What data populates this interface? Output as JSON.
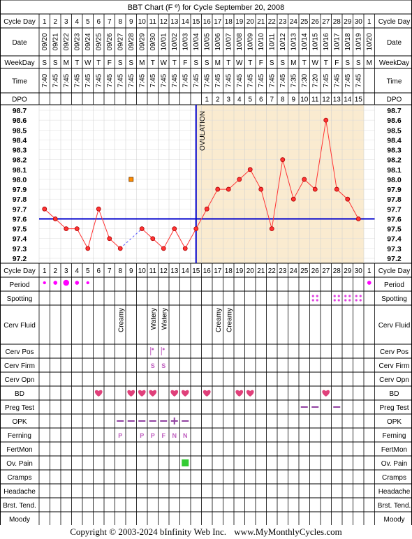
{
  "title": "BBT Chart (F º) for Cycle September 20, 2008",
  "labels": {
    "cycle_day": "Cycle Day",
    "date": "Date",
    "weekday": "WeekDay",
    "time": "Time",
    "dpo": "DPO",
    "ovulation": "OVULATION"
  },
  "cycle_days": [
    1,
    2,
    3,
    4,
    5,
    6,
    7,
    8,
    9,
    10,
    11,
    12,
    13,
    14,
    15,
    16,
    17,
    18,
    19,
    20,
    21,
    22,
    23,
    24,
    25,
    26,
    27,
    28,
    29,
    30,
    1
  ],
  "dates": [
    "09/20",
    "09/21",
    "09/22",
    "09/23",
    "09/24",
    "09/25",
    "09/26",
    "09/27",
    "09/28",
    "09/29",
    "09/30",
    "10/01",
    "10/02",
    "10/03",
    "10/04",
    "10/05",
    "10/06",
    "10/07",
    "10/08",
    "10/09",
    "10/10",
    "10/11",
    "10/12",
    "10/13",
    "10/14",
    "10/15",
    "10/16",
    "10/17",
    "10/18",
    "10/19",
    "10/20"
  ],
  "weekdays": [
    "S",
    "S",
    "M",
    "T",
    "W",
    "T",
    "F",
    "S",
    "S",
    "M",
    "T",
    "W",
    "T",
    "F",
    "S",
    "S",
    "M",
    "T",
    "W",
    "T",
    "F",
    "S",
    "S",
    "M",
    "T",
    "W",
    "T",
    "F",
    "S",
    "S",
    "M"
  ],
  "times": [
    "7:40",
    "7:45",
    "7:45",
    "7:45",
    "7:45",
    "7:45",
    "7:45",
    "7:45",
    "7:45",
    "7:45",
    "7:45",
    "7:45",
    "7:45",
    "7:45",
    "7:45",
    "7:45",
    "7:45",
    "7:45",
    "7:45",
    "7:45",
    "7:45",
    "7:45",
    "7:45",
    "7:35",
    "7:30",
    "7:20",
    "7:45",
    "7:45",
    "7:45",
    "7:45",
    ""
  ],
  "dpo": [
    "",
    "",
    "",
    "",
    "",
    "",
    "",
    "",
    "",
    "",
    "",
    "",
    "",
    "",
    "",
    "1",
    "2",
    "3",
    "4",
    "5",
    "6",
    "7",
    "8",
    "9",
    "10",
    "11",
    "12",
    "13",
    "14",
    "15",
    ""
  ],
  "chart_data": {
    "type": "line",
    "title": "BBT Chart (F º) for Cycle September 20, 2008",
    "y_ticks": [
      "98.7",
      "98.6",
      "98.5",
      "98.4",
      "98.3",
      "98.2",
      "98.1",
      "98.0",
      "97.9",
      "97.8",
      "97.7",
      "97.6",
      "97.5",
      "97.4",
      "97.3",
      "97.2"
    ],
    "ylim": [
      97.2,
      98.7
    ],
    "x": [
      1,
      2,
      3,
      4,
      5,
      6,
      7,
      8,
      9,
      10,
      11,
      12,
      13,
      14,
      15,
      16,
      17,
      18,
      19,
      20,
      21,
      22,
      23,
      24,
      25,
      26,
      27,
      28,
      29,
      30
    ],
    "temps": [
      97.7,
      97.6,
      97.5,
      97.5,
      97.3,
      97.7,
      97.4,
      97.3,
      null,
      97.5,
      97.4,
      97.3,
      97.5,
      97.3,
      97.5,
      97.7,
      97.9,
      97.9,
      98.0,
      98.1,
      97.9,
      97.5,
      98.2,
      97.8,
      98.0,
      97.9,
      98.6,
      97.9,
      97.8,
      97.6
    ],
    "discarded": [
      {
        "day": 9,
        "temp": 98.0
      }
    ],
    "coverline": 97.6,
    "ovulation_day": 15,
    "colors": {
      "line": "#ff3333",
      "coverline": "#0000cc",
      "luteal_fill": "#faebd0",
      "discard": "#ff8c00"
    }
  },
  "rows": [
    {
      "label": "Period",
      "items": [
        {
          "day": 1,
          "kind": "dot",
          "size": 3
        },
        {
          "day": 2,
          "kind": "dot",
          "size": 4
        },
        {
          "day": 3,
          "kind": "dot",
          "size": 6
        },
        {
          "day": 4,
          "kind": "dot",
          "size": 4
        },
        {
          "day": 5,
          "kind": "dot",
          "size": 3
        },
        {
          "day": 31,
          "kind": "dot",
          "size": 4
        }
      ]
    },
    {
      "label": "Spotting",
      "items": [
        {
          "day": 26,
          "kind": "spot"
        },
        {
          "day": 28,
          "kind": "spot"
        },
        {
          "day": 29,
          "kind": "spot"
        },
        {
          "day": 30,
          "kind": "spot"
        }
      ]
    },
    {
      "label": "Cerv Fluid",
      "items": [
        {
          "day": 8,
          "kind": "vtext",
          "text": "Creamy"
        },
        {
          "day": 11,
          "kind": "vtext",
          "text": "Watery"
        },
        {
          "day": 12,
          "kind": "vtext",
          "text": "Watery"
        },
        {
          "day": 17,
          "kind": "vtext",
          "text": "Creamy"
        },
        {
          "day": 18,
          "kind": "vtext",
          "text": "Creamy"
        }
      ]
    },
    {
      "label": "Cerv Pos",
      "items": [
        {
          "day": 11,
          "kind": "pos"
        },
        {
          "day": 12,
          "kind": "pos"
        }
      ]
    },
    {
      "label": "Cerv Firm",
      "items": [
        {
          "day": 11,
          "kind": "text",
          "text": "S"
        },
        {
          "day": 12,
          "kind": "text",
          "text": "S"
        }
      ]
    },
    {
      "label": "Cerv Opn",
      "items": []
    },
    {
      "label": "BD",
      "items": [
        {
          "day": 6,
          "kind": "heart"
        },
        {
          "day": 9,
          "kind": "heart"
        },
        {
          "day": 10,
          "kind": "heart"
        },
        {
          "day": 11,
          "kind": "heart"
        },
        {
          "day": 13,
          "kind": "heart"
        },
        {
          "day": 14,
          "kind": "heart"
        },
        {
          "day": 16,
          "kind": "heart"
        },
        {
          "day": 19,
          "kind": "heart"
        },
        {
          "day": 20,
          "kind": "heart"
        },
        {
          "day": 27,
          "kind": "heart"
        }
      ]
    },
    {
      "label": "Preg Test",
      "items": [
        {
          "day": 25,
          "kind": "dash"
        },
        {
          "day": 26,
          "kind": "dash"
        },
        {
          "day": 28,
          "kind": "dash"
        }
      ]
    },
    {
      "label": "OPK",
      "items": [
        {
          "day": 8,
          "kind": "dash"
        },
        {
          "day": 9,
          "kind": "dash"
        },
        {
          "day": 10,
          "kind": "dash"
        },
        {
          "day": 11,
          "kind": "dash"
        },
        {
          "day": 12,
          "kind": "dash"
        },
        {
          "day": 13,
          "kind": "plus"
        },
        {
          "day": 14,
          "kind": "dash"
        }
      ]
    },
    {
      "label": "Ferning",
      "items": [
        {
          "day": 8,
          "kind": "text",
          "text": "P"
        },
        {
          "day": 10,
          "kind": "text",
          "text": "P"
        },
        {
          "day": 11,
          "kind": "text",
          "text": "P"
        },
        {
          "day": 12,
          "kind": "text",
          "text": "F"
        },
        {
          "day": 13,
          "kind": "text",
          "text": "N"
        },
        {
          "day": 14,
          "kind": "text",
          "text": "N"
        }
      ]
    },
    {
      "label": "FertMon",
      "items": []
    },
    {
      "label": "Ov. Pain",
      "items": [
        {
          "day": 14,
          "kind": "square"
        }
      ]
    },
    {
      "label": "Cramps",
      "items": []
    },
    {
      "label": "Headache",
      "items": []
    },
    {
      "label": "Brst. Tend.",
      "items": []
    },
    {
      "label": "Moody",
      "items": []
    }
  ],
  "footer": {
    "copyright": "Copyright © 2003-2024 bInfinity Web Inc.",
    "site": "www.MyMonthlyCycles.com"
  }
}
